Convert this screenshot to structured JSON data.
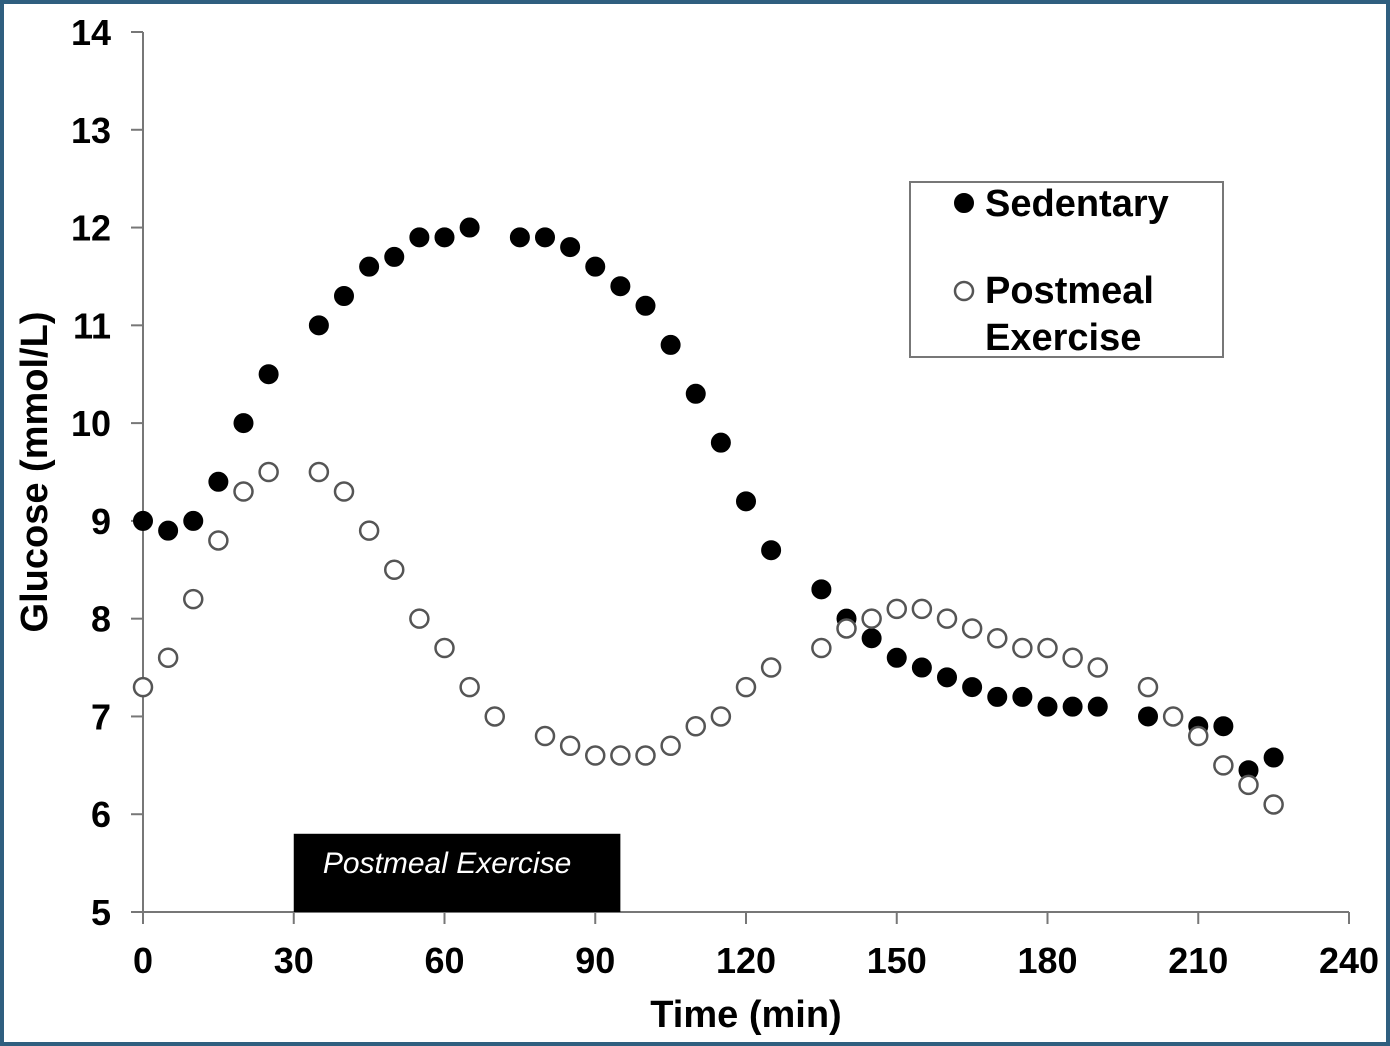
{
  "chart_data": {
    "type": "scatter",
    "xlabel": "Time (min)",
    "ylabel": "Glucose (mmol/L)",
    "xlim": [
      0,
      240
    ],
    "ylim": [
      5,
      14
    ],
    "xticks": [
      0,
      30,
      60,
      90,
      120,
      150,
      180,
      210,
      240
    ],
    "yticks": [
      5,
      6,
      7,
      8,
      9,
      10,
      11,
      12,
      13,
      14
    ],
    "grid": false,
    "legend_position": "top-right",
    "annotation": {
      "label": "Postmeal Exercise",
      "x_start": 30,
      "x_end": 95,
      "y_start": 5,
      "y_end": 5.8,
      "color": "#000000"
    },
    "series": [
      {
        "name": "Sedentary",
        "marker": "filled-circle",
        "color": "#000000",
        "points": [
          [
            0,
            9.0
          ],
          [
            5,
            8.9
          ],
          [
            10,
            9.0
          ],
          [
            15,
            9.4
          ],
          [
            20,
            10.0
          ],
          [
            25,
            10.5
          ],
          [
            35,
            11.0
          ],
          [
            40,
            11.3
          ],
          [
            45,
            11.6
          ],
          [
            50,
            11.7
          ],
          [
            55,
            11.9
          ],
          [
            60,
            11.9
          ],
          [
            65,
            12.0
          ],
          [
            75,
            11.9
          ],
          [
            80,
            11.9
          ],
          [
            85,
            11.8
          ],
          [
            90,
            11.6
          ],
          [
            95,
            11.4
          ],
          [
            100,
            11.2
          ],
          [
            105,
            10.8
          ],
          [
            110,
            10.3
          ],
          [
            115,
            9.8
          ],
          [
            120,
            9.2
          ],
          [
            125,
            8.7
          ],
          [
            135,
            8.3
          ],
          [
            140,
            8.0
          ],
          [
            145,
            7.8
          ],
          [
            150,
            7.6
          ],
          [
            155,
            7.5
          ],
          [
            160,
            7.4
          ],
          [
            165,
            7.3
          ],
          [
            170,
            7.2
          ],
          [
            175,
            7.2
          ],
          [
            180,
            7.1
          ],
          [
            185,
            7.1
          ],
          [
            190,
            7.1
          ],
          [
            200,
            7.0
          ],
          [
            210,
            6.9
          ],
          [
            215,
            6.9
          ],
          [
            220,
            6.45
          ],
          [
            225,
            6.58
          ]
        ]
      },
      {
        "name": "Postmeal\nExercise",
        "marker": "open-circle",
        "color": "#000000",
        "points": [
          [
            0,
            7.3
          ],
          [
            5,
            7.6
          ],
          [
            10,
            8.2
          ],
          [
            15,
            8.8
          ],
          [
            20,
            9.3
          ],
          [
            25,
            9.5
          ],
          [
            35,
            9.5
          ],
          [
            40,
            9.3
          ],
          [
            45,
            8.9
          ],
          [
            50,
            8.5
          ],
          [
            55,
            8.0
          ],
          [
            60,
            7.7
          ],
          [
            65,
            7.3
          ],
          [
            70,
            7.0
          ],
          [
            80,
            6.8
          ],
          [
            85,
            6.7
          ],
          [
            90,
            6.6
          ],
          [
            95,
            6.6
          ],
          [
            100,
            6.6
          ],
          [
            105,
            6.7
          ],
          [
            110,
            6.9
          ],
          [
            115,
            7.0
          ],
          [
            120,
            7.3
          ],
          [
            125,
            7.5
          ],
          [
            135,
            7.7
          ],
          [
            140,
            7.9
          ],
          [
            145,
            8.0
          ],
          [
            150,
            8.1
          ],
          [
            155,
            8.1
          ],
          [
            160,
            8.0
          ],
          [
            165,
            7.9
          ],
          [
            170,
            7.8
          ],
          [
            175,
            7.7
          ],
          [
            180,
            7.7
          ],
          [
            185,
            7.6
          ],
          [
            190,
            7.5
          ],
          [
            200,
            7.3
          ],
          [
            205,
            7.0
          ],
          [
            210,
            6.8
          ],
          [
            215,
            6.5
          ],
          [
            220,
            6.3
          ],
          [
            225,
            6.1
          ]
        ]
      }
    ],
    "legend": {
      "entries": [
        {
          "label_lines": [
            "Sedentary"
          ]
        },
        {
          "label_lines": [
            "Postmeal",
            "Exercise"
          ]
        }
      ]
    }
  }
}
